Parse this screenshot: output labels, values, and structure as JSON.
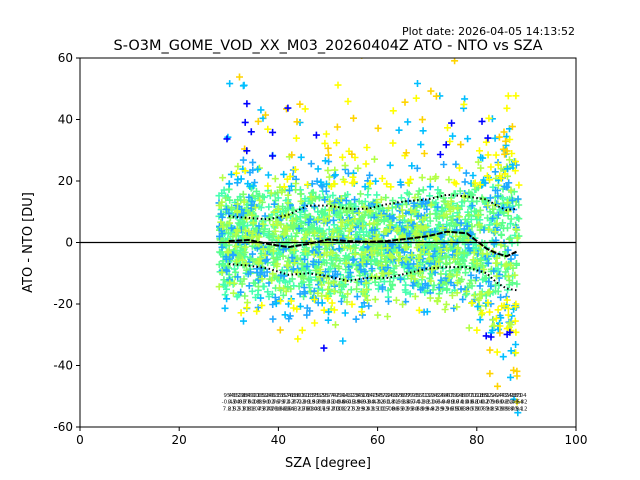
{
  "plot_date": "Plot date: 2026-04-05 14:13:52",
  "chart_data": {
    "type": "scatter",
    "title": "S-O3M_GOME_VOD_XX_M03_20260404Z ATO - NTO vs SZA",
    "xlabel": "SZA [degree]",
    "ylabel": "ATO - NTO [DU]",
    "xlim": [
      0,
      100
    ],
    "ylim": [
      -60,
      60
    ],
    "xticks": [
      0,
      20,
      40,
      60,
      80,
      100
    ],
    "yticks": [
      -60,
      -40,
      -20,
      0,
      20,
      40,
      60
    ],
    "grid": false,
    "legend": "none",
    "reference_line_y": 0,
    "scatter_x_range": [
      28,
      88.5
    ],
    "scatter_colors": [
      "#0000ff",
      "#00bfff",
      "#1fa9ff",
      "#46ffb0",
      "#5aff8c",
      "#7cff6a",
      "#b4ff46",
      "#ffff00",
      "#ffd400"
    ],
    "mean_series": {
      "name": "",
      "x": [
        30,
        34,
        38,
        42,
        46,
        50,
        54,
        58,
        62,
        66,
        70,
        74,
        78,
        82,
        84,
        86,
        88
      ],
      "y": [
        0.5,
        0.8,
        -0.5,
        -1.5,
        -0.5,
        1.0,
        0.5,
        0.2,
        0.5,
        1.2,
        2.0,
        3.5,
        3.0,
        -2.0,
        -3.5,
        -4.5,
        -3.0
      ]
    },
    "upper_series": {
      "name": "",
      "x": [
        30,
        34,
        38,
        42,
        46,
        50,
        54,
        58,
        62,
        66,
        70,
        74,
        78,
        82,
        84,
        86,
        88
      ],
      "y": [
        8.5,
        8.0,
        7.5,
        9.0,
        12.0,
        12.0,
        11.0,
        11.0,
        12.5,
        13.5,
        14.0,
        15.5,
        15.0,
        14.0,
        12.0,
        10.5,
        11.0
      ]
    },
    "lower_series": {
      "name": "",
      "x": [
        30,
        34,
        38,
        42,
        46,
        50,
        54,
        58,
        62,
        66,
        70,
        74,
        78,
        82,
        84,
        86,
        88
      ],
      "y": [
        -7.0,
        -7.5,
        -8.5,
        -10.5,
        -10.0,
        -11.0,
        -12.5,
        -11.5,
        -11.5,
        -10.0,
        -8.5,
        -8.0,
        -8.0,
        -10.0,
        -13.0,
        -15.0,
        -15.5
      ]
    }
  }
}
